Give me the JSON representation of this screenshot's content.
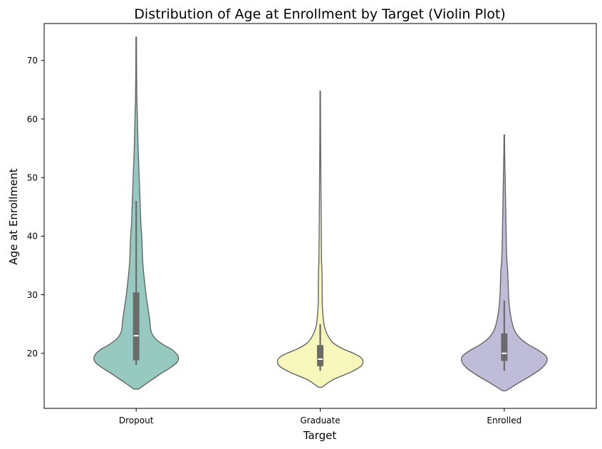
{
  "chart_data": {
    "type": "violin",
    "title": "Distribution of Age at Enrollment by Target (Violin Plot)",
    "xlabel": "Target",
    "ylabel": "Age at Enrollment",
    "ylim": [
      10.6,
      76.3
    ],
    "yticks": [
      20,
      30,
      40,
      50,
      60,
      70
    ],
    "grid": false,
    "legend": "none",
    "categories": [
      "Dropout",
      "Graduate",
      "Enrolled"
    ],
    "colors": {
      "Dropout": "#96c9c0",
      "Graduate": "#f7f7bb",
      "Enrolled": "#bfbcd9",
      "edge": "#666666",
      "box": "#6b6b6b",
      "median": "#ffffff"
    },
    "series": [
      {
        "category": "Dropout",
        "min": 13.9,
        "max": 74.0,
        "whisker_low": 18.0,
        "q1": 18.8,
        "median": 23.0,
        "q3": 30.4,
        "whisker_high": 46.0,
        "density_y": [
          13.9,
          15.0,
          16.5,
          17.5,
          18.5,
          19.5,
          20.5,
          21.5,
          22.5,
          23.5,
          24.5,
          25.5,
          26.5,
          28.0,
          30.0,
          32.0,
          34.0,
          36.0,
          38.0,
          40.0,
          42.0,
          44.0,
          46.0,
          48.0,
          50.0,
          52.0,
          55.0,
          58.0,
          61.0,
          64.0,
          67.0,
          70.0,
          74.0
        ],
        "density_w": [
          0.06,
          0.27,
          0.57,
          0.79,
          0.96,
          0.98,
          0.86,
          0.63,
          0.45,
          0.36,
          0.33,
          0.32,
          0.3,
          0.27,
          0.23,
          0.2,
          0.17,
          0.15,
          0.14,
          0.13,
          0.11,
          0.1,
          0.09,
          0.08,
          0.07,
          0.06,
          0.045,
          0.035,
          0.025,
          0.015,
          0.01,
          0.008,
          0.006
        ]
      },
      {
        "category": "Graduate",
        "min": 14.2,
        "max": 64.8,
        "whisker_low": 17.0,
        "q1": 17.8,
        "median": 19.0,
        "q3": 21.4,
        "whisker_high": 25.0,
        "density_y": [
          14.2,
          15.5,
          16.8,
          17.8,
          18.6,
          19.3,
          20.0,
          20.8,
          21.8,
          23.0,
          24.5,
          26.0,
          28.0,
          30.0,
          32.0,
          34.0,
          36.0,
          40.0,
          45.0,
          50.0,
          55.0,
          60.0,
          64.8
        ],
        "density_w": [
          0.04,
          0.3,
          0.72,
          0.95,
          1.0,
          0.95,
          0.78,
          0.52,
          0.3,
          0.18,
          0.1,
          0.07,
          0.05,
          0.045,
          0.045,
          0.04,
          0.03,
          0.025,
          0.02,
          0.015,
          0.01,
          0.007,
          0.005
        ]
      },
      {
        "category": "Enrolled",
        "min": 13.6,
        "max": 57.3,
        "whisker_low": 17.0,
        "q1": 18.7,
        "median": 20.0,
        "q3": 23.4,
        "whisker_high": 29.0,
        "density_y": [
          13.6,
          14.8,
          16.3,
          17.5,
          18.5,
          19.5,
          20.5,
          21.5,
          22.5,
          23.5,
          24.5,
          26.0,
          28.0,
          30.0,
          32.0,
          34.0,
          36.0,
          38.0,
          42.0,
          46.0,
          50.0,
          54.0,
          57.3
        ],
        "density_w": [
          0.04,
          0.3,
          0.65,
          0.88,
          0.99,
          0.98,
          0.8,
          0.56,
          0.38,
          0.27,
          0.21,
          0.16,
          0.12,
          0.1,
          0.09,
          0.08,
          0.06,
          0.05,
          0.04,
          0.03,
          0.02,
          0.01,
          0.006
        ]
      }
    ]
  }
}
